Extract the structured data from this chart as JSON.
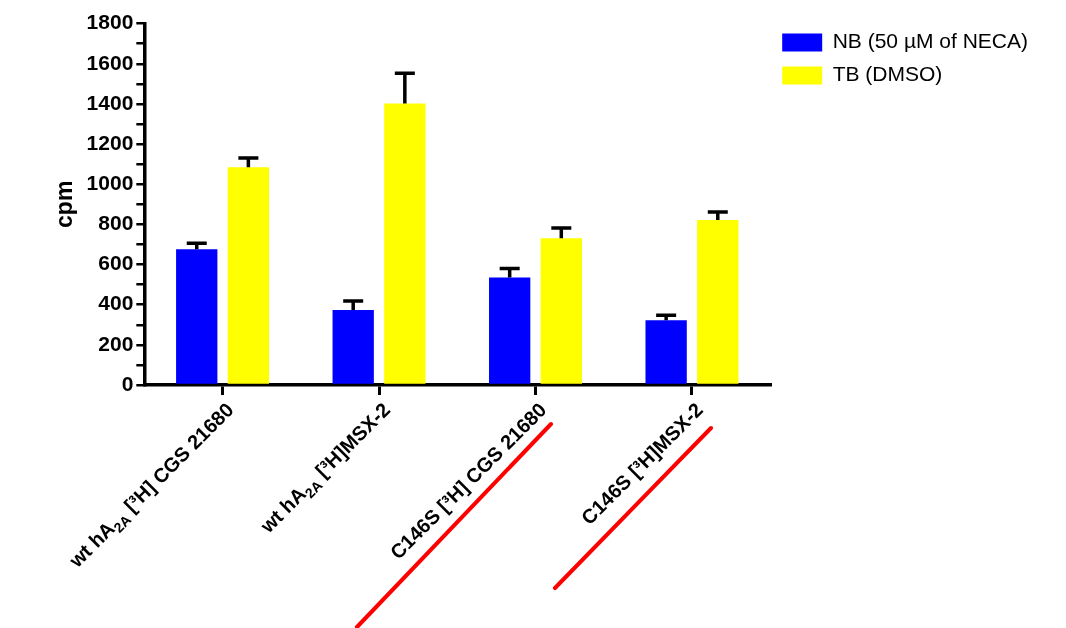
{
  "chart_data": {
    "type": "bar",
    "ylabel": "cpm",
    "categories": [
      "wt hA$_{2A}$ [³H] CGS 21680",
      "wt hA$_{2A}$ [³H]MSX-2",
      "C146S [³H] CGS 21680",
      "C146S [³H]MSX-2"
    ],
    "series": [
      {
        "name": "NB (50 µM of NECA)",
        "color": "#0000ff",
        "values": [
          676,
          373,
          535,
          323
        ],
        "errors": [
          30,
          45,
          45,
          25
        ]
      },
      {
        "name": "TB (DMSO)",
        "color": "#ffff00",
        "values": [
          1084,
          1402,
          731,
          822
        ],
        "errors": [
          46,
          151,
          51,
          40
        ]
      }
    ],
    "ylim": [
      0,
      1800
    ],
    "yticks": [
      0,
      {
        "value": 100,
        "label": null
      },
      200,
      {
        "value": 300,
        "label": null
      },
      400,
      {
        "value": 500,
        "label": null
      },
      600,
      {
        "value": 700,
        "label": null
      },
      800,
      {
        "value": 900,
        "label": null
      },
      1000,
      {
        "value": 1100,
        "label": null
      },
      1200,
      {
        "value": 1300,
        "label": null
      },
      1400,
      {
        "value": 1500,
        "label": null
      },
      1600,
      {
        "value": 1700,
        "label": null
      },
      1800
    ],
    "legend": "top right"
  }
}
